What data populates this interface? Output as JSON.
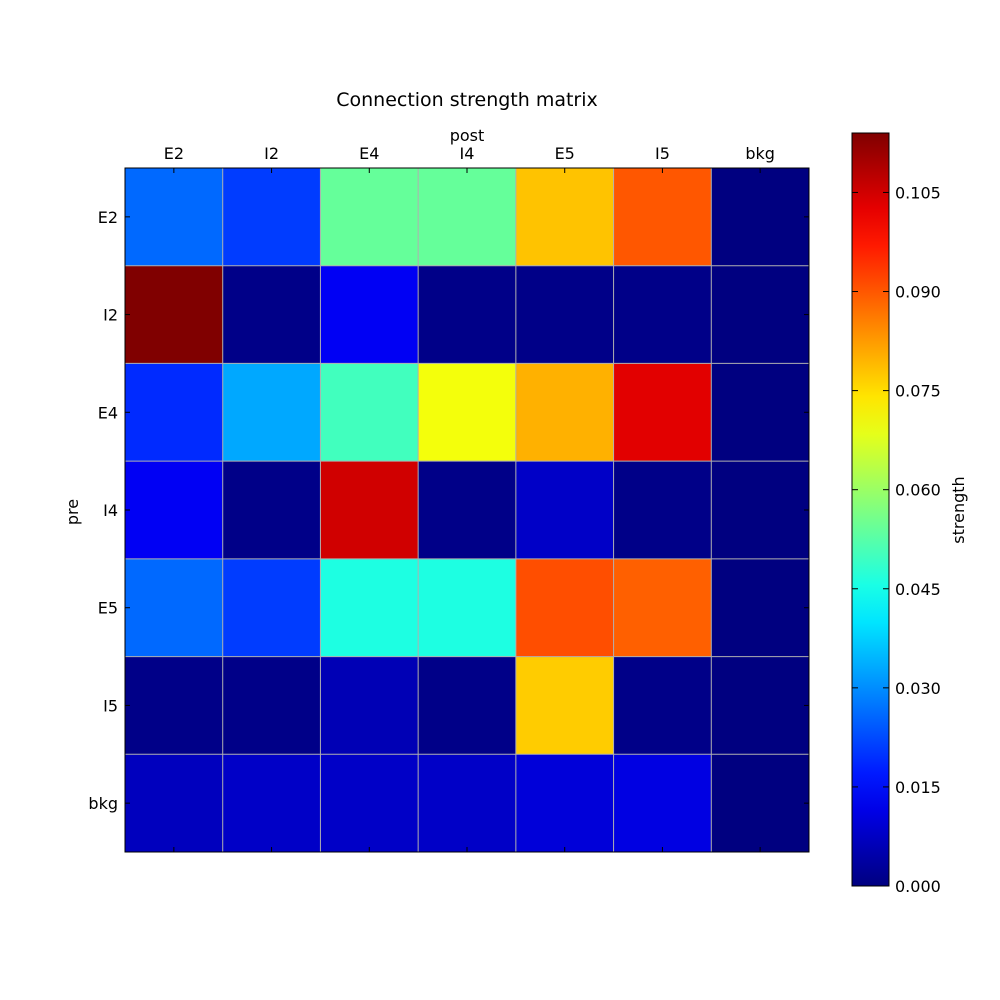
{
  "chart_data": {
    "type": "heatmap",
    "title": "Connection strength matrix",
    "xlabel": "post",
    "ylabel": "pre",
    "x_categories": [
      "E2",
      "I2",
      "E4",
      "I4",
      "E5",
      "I5",
      "bkg"
    ],
    "y_categories": [
      "E2",
      "I2",
      "E4",
      "I4",
      "E5",
      "I5",
      "bkg"
    ],
    "values": [
      [
        0.026,
        0.021,
        0.054,
        0.054,
        0.078,
        0.09,
        0.0
      ],
      [
        0.114,
        0.001,
        0.013,
        0.001,
        0.001,
        0.001,
        0.0
      ],
      [
        0.019,
        0.033,
        0.05,
        0.07,
        0.08,
        0.103,
        0.0
      ],
      [
        0.013,
        0.001,
        0.105,
        0.001,
        0.008,
        0.001,
        0.0
      ],
      [
        0.026,
        0.021,
        0.046,
        0.046,
        0.091,
        0.089,
        0.0
      ],
      [
        0.001,
        0.001,
        0.006,
        0.001,
        0.077,
        0.001,
        0.0
      ],
      [
        0.007,
        0.008,
        0.008,
        0.008,
        0.01,
        0.011,
        0.0
      ]
    ],
    "colorbar": {
      "label": "strength",
      "range": [
        0.0,
        0.114
      ],
      "ticks": [
        0.0,
        0.015,
        0.03,
        0.045,
        0.06,
        0.075,
        0.09,
        0.105
      ],
      "tick_labels": [
        "0.000",
        "0.015",
        "0.030",
        "0.045",
        "0.060",
        "0.075",
        "0.090",
        "0.105"
      ],
      "colormap": "jet"
    },
    "grid": true,
    "x_tick_position": "top"
  }
}
